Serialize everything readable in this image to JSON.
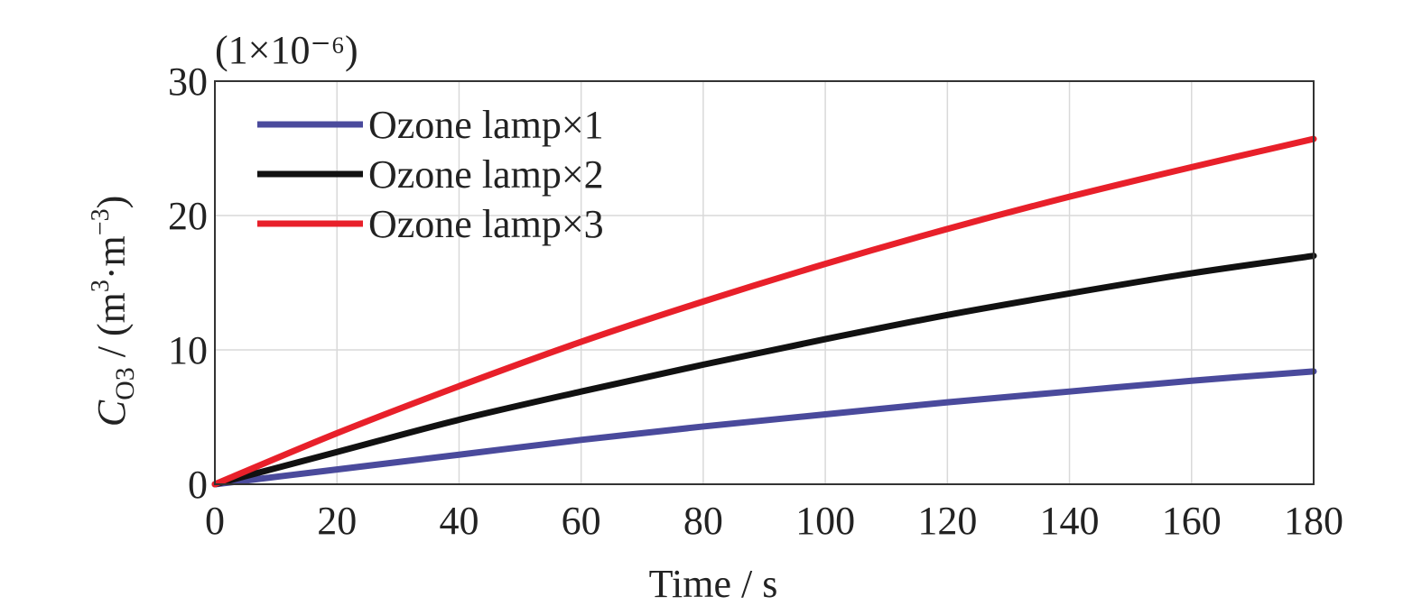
{
  "chart_data": {
    "type": "line",
    "title": "",
    "xlabel": "Time / s",
    "ylabel": {
      "symbol": "C",
      "subscript": "O3",
      "units_prefix": " / (m",
      "units_sup1": "3",
      "units_mid": "·m",
      "units_sup2": "−3",
      "units_suffix": ")"
    },
    "y_scale_note": "(1×10⁻⁶)",
    "xlim": [
      0,
      180
    ],
    "ylim": [
      0,
      30
    ],
    "xticks": [
      "0",
      "20",
      "40",
      "60",
      "80",
      "100",
      "120",
      "140",
      "160",
      "180"
    ],
    "yticks": [
      "0",
      "10",
      "20",
      "30"
    ],
    "grid": true,
    "legend_position": "top-left",
    "x": [
      0,
      20,
      40,
      60,
      80,
      100,
      120,
      140,
      160,
      180
    ],
    "series": [
      {
        "name": "Ozone lamp×1",
        "color": "#4a4a9c",
        "values": [
          0,
          1.1,
          2.2,
          3.3,
          4.3,
          5.2,
          6.1,
          6.9,
          7.7,
          8.4
        ]
      },
      {
        "name": "Ozone lamp×2",
        "color": "#111111",
        "values": [
          0,
          2.4,
          4.8,
          6.9,
          8.9,
          10.8,
          12.6,
          14.2,
          15.7,
          17.0
        ]
      },
      {
        "name": "Ozone lamp×3",
        "color": "#e8202a",
        "values": [
          0,
          3.8,
          7.3,
          10.6,
          13.6,
          16.4,
          19.0,
          21.4,
          23.6,
          25.7
        ]
      }
    ]
  }
}
